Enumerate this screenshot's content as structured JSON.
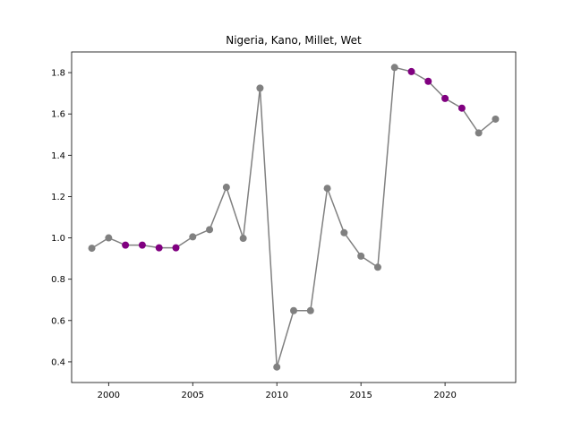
{
  "chart_data": {
    "type": "line",
    "title": "Nigeria, Kano, Millet, Wet",
    "xlabel": "",
    "ylabel": "",
    "xlim": [
      1997.8,
      2024.2
    ],
    "ylim": [
      0.3,
      1.9
    ],
    "xticks": [
      2000,
      2005,
      2010,
      2015,
      2020
    ],
    "yticks": [
      0.4,
      0.6,
      0.8,
      1.0,
      1.2,
      1.4,
      1.6,
      1.8
    ],
    "xtick_labels": [
      "2000",
      "2005",
      "2010",
      "2015",
      "2020"
    ],
    "ytick_labels": [
      "0.4",
      "0.6",
      "0.8",
      "1.0",
      "1.2",
      "1.4",
      "1.6",
      "1.8"
    ],
    "grid": false,
    "line_color": "#808080",
    "normal_marker_color": "#808080",
    "highlight_marker_color": "#800080",
    "series": [
      {
        "x": [
          1999,
          2000,
          2001,
          2002,
          2003,
          2004,
          2005,
          2006,
          2007,
          2008,
          2009,
          2010,
          2011,
          2012,
          2013,
          2014,
          2015,
          2016,
          2017,
          2018,
          2019,
          2020,
          2021,
          2022,
          2023
        ],
        "values": [
          0.95,
          1.0,
          0.965,
          0.965,
          0.952,
          0.952,
          1.005,
          1.04,
          1.245,
          0.998,
          1.725,
          0.375,
          0.648,
          0.648,
          1.24,
          1.025,
          0.912,
          0.858,
          1.825,
          1.805,
          1.758,
          1.675,
          1.628,
          1.508,
          1.575
        ],
        "highlighted": [
          false,
          false,
          true,
          true,
          true,
          true,
          false,
          false,
          false,
          false,
          false,
          false,
          false,
          false,
          false,
          false,
          false,
          false,
          false,
          true,
          true,
          true,
          true,
          false,
          false
        ]
      }
    ]
  }
}
